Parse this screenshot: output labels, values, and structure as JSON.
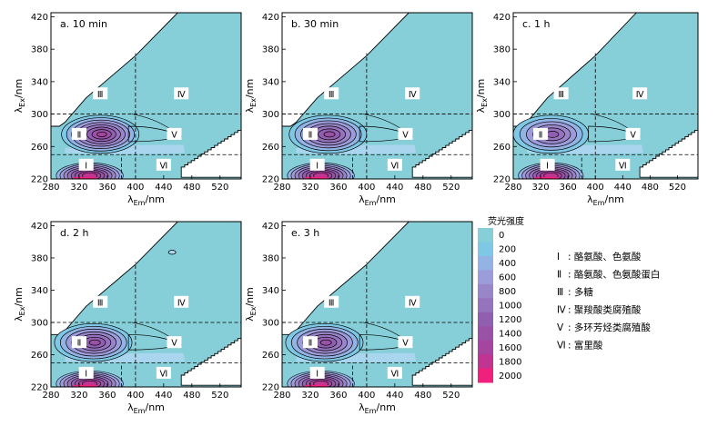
{
  "chart_data": {
    "type": "heatmap",
    "x_label_base": "λ",
    "x_label_sub": "Em",
    "x_label_unit": "/nm",
    "y_label_base": "λ",
    "y_label_sub": "Ex",
    "y_label_unit": "/nm",
    "xlim": [
      280,
      550
    ],
    "ylim": [
      220,
      425
    ],
    "x_ticks": [
      280,
      320,
      360,
      400,
      440,
      480,
      520
    ],
    "y_ticks": [
      220,
      260,
      300,
      340,
      380,
      420
    ],
    "x_tick_labels": [
      "280",
      "320",
      "360",
      "400",
      "440",
      "480",
      "520"
    ],
    "y_tick_labels": [
      "220",
      "260",
      "300",
      "340",
      "380",
      "420"
    ],
    "region_boundaries": {
      "x_em": 400,
      "y_ex_upper": 300,
      "y_ex_lower": 250
    },
    "regions": [
      {
        "label": "Ⅰ",
        "x": 330,
        "y": 237
      },
      {
        "label": "Ⅱ",
        "x": 320,
        "y": 275
      },
      {
        "label": "Ⅲ",
        "x": 350,
        "y": 325
      },
      {
        "label": "Ⅳ",
        "x": 465,
        "y": 325
      },
      {
        "label": "Ⅴ",
        "x": 455,
        "y": 275
      },
      {
        "label": "Ⅵ",
        "x": 440,
        "y": 237
      }
    ],
    "panels": [
      {
        "title": "a. 10 min",
        "peak_em": 350,
        "peak_ex": 275,
        "peak_intensity": 1400
      },
      {
        "title": "b. 30 min",
        "peak_em": 345,
        "peak_ex": 275,
        "peak_intensity": 1200
      },
      {
        "title": "c. 1 h",
        "peak_em": 335,
        "peak_ex": 275,
        "peak_intensity": 1000
      },
      {
        "title": "d. 2 h",
        "peak_em": 340,
        "peak_ex": 275,
        "peak_intensity": 1200
      },
      {
        "title": "e. 3 h",
        "peak_em": 340,
        "peak_ex": 275,
        "peak_intensity": 1200
      }
    ],
    "colorbar": {
      "title": "荧光强度",
      "levels": [
        0,
        200,
        400,
        600,
        800,
        1000,
        1200,
        1400,
        1600,
        1800,
        2000
      ],
      "level_labels": [
        "0",
        "200",
        "400",
        "600",
        "800",
        "1000",
        "1200",
        "1400",
        "1600",
        "1800",
        "2000"
      ],
      "colors": [
        "#86cfd9",
        "#7ec8e6",
        "#92b3e3",
        "#9b9cd9",
        "#9986c8",
        "#9574bd",
        "#915fb0",
        "#9a52a7",
        "#a6459f",
        "#c13592",
        "#f0207d"
      ]
    },
    "legend": [
      {
        "num": "Ⅰ",
        "text": ": 酪氨酸、色氨酸"
      },
      {
        "num": "Ⅱ",
        "text": ": 酪氨酸、色氨酸蛋白"
      },
      {
        "num": "Ⅲ",
        "text": ": 多糖"
      },
      {
        "num": "Ⅳ",
        "text": ": 聚羧酸类腐殖酸"
      },
      {
        "num": "Ⅴ",
        "text": ": 多环芳烃类腐殖酸"
      },
      {
        "num": "Ⅵ",
        "text": ": 富里酸"
      }
    ]
  }
}
